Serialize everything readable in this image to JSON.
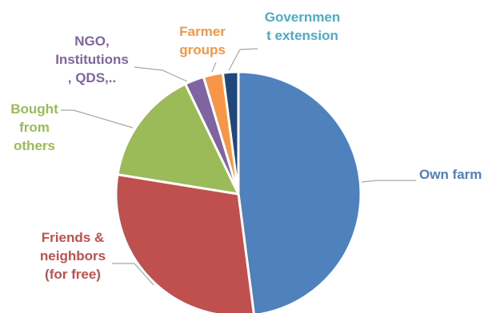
{
  "chart_data": {
    "type": "pie",
    "title": "",
    "legend": "none",
    "slices": [
      {
        "label": "Own farm",
        "value": 47,
        "color": "#4F81BD"
      },
      {
        "label": "Friends & neighbors (for free)",
        "value": 29,
        "color": "#C0504D"
      },
      {
        "label": "Bought from others",
        "value": 15,
        "color": "#9BBB59"
      },
      {
        "label": "NGO, Institutions, QDS,..",
        "value": 2.5,
        "color": "#8064A2"
      },
      {
        "label": "Farmer groups",
        "value": 2.5,
        "color": "#F79646"
      },
      {
        "label": "Government extension",
        "value": 2,
        "color": "#1F497D"
      }
    ]
  },
  "labels": {
    "own_farm": "Own farm",
    "friends_l1": "Friends &",
    "friends_l2": "neighbors",
    "friends_l3": "(for free)",
    "bought_l1": "Bought",
    "bought_l2": "from",
    "bought_l3": "others",
    "ngo_l1": "NGO,",
    "ngo_l2": "Institutions",
    "ngo_l3": ", QDS,..",
    "farmer_l1": "Farmer",
    "farmer_l2": "groups",
    "gov_l1": "Governmen",
    "gov_l2": "t extension"
  },
  "label_colors": {
    "own_farm": "#4F81BD",
    "friends": "#C0504D",
    "bought": "#9BBB59",
    "ngo": "#8064A2",
    "farmer": "#F79646",
    "gov": "#4BACC6"
  }
}
